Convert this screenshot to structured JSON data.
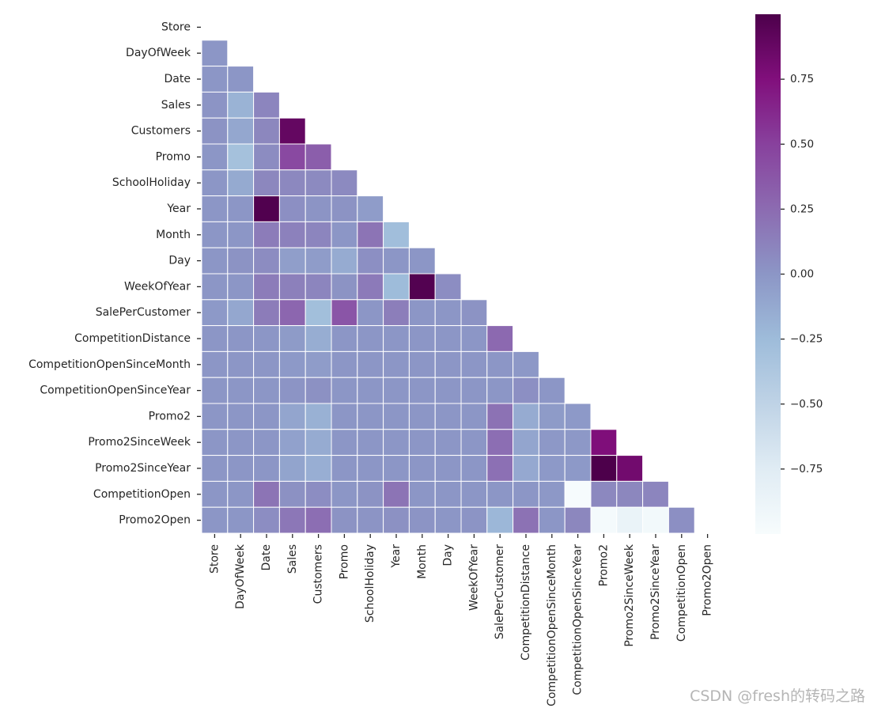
{
  "chart_data": {
    "type": "heatmap",
    "title": "",
    "xlabel": "",
    "ylabel": "",
    "mask": "upper-triangle",
    "colormap": "BuPu",
    "colorbar": {
      "vmin": -1.0,
      "vmax": 1.0,
      "ticks": [
        0.75,
        0.5,
        0.25,
        0.0,
        -0.25,
        -0.5,
        -0.75
      ],
      "tick_labels": [
        "0.75",
        "0.50",
        "0.25",
        "0.00",
        "−0.25",
        "−0.50",
        "−0.75"
      ]
    },
    "labels": [
      "Store",
      "DayOfWeek",
      "Date",
      "Sales",
      "Customers",
      "Promo",
      "SchoolHoliday",
      "Year",
      "Month",
      "Day",
      "WeekOfYear",
      "SalePerCustomer",
      "CompetitionDistance",
      "CompetitionOpenSinceMonth",
      "CompetitionOpenSinceYear",
      "Promo2",
      "Promo2SinceWeek",
      "Promo2SinceYear",
      "CompetitionOpen",
      "Promo2Open"
    ],
    "values": [
      [],
      [
        0.0
      ],
      [
        0.0,
        0.0
      ],
      [
        0.01,
        -0.19,
        0.1
      ],
      [
        0.02,
        -0.11,
        0.09,
        0.89
      ],
      [
        0.0,
        -0.3,
        0.06,
        0.45,
        0.33
      ],
      [
        0.0,
        -0.13,
        0.09,
        0.08,
        0.07,
        0.07
      ],
      [
        0.0,
        0.0,
        0.98,
        0.04,
        0.01,
        0.02,
        -0.04
      ],
      [
        0.0,
        0.0,
        0.15,
        0.12,
        0.1,
        0.0,
        0.2,
        -0.27
      ],
      [
        0.0,
        0.02,
        0.06,
        -0.05,
        -0.04,
        -0.14,
        0.04,
        0.0,
        0.0
      ],
      [
        0.0,
        0.0,
        0.15,
        0.13,
        0.1,
        0.02,
        0.16,
        -0.25,
        0.97,
        0.05
      ],
      [
        -0.02,
        -0.11,
        0.15,
        0.28,
        -0.28,
        0.38,
        0.0,
        0.14,
        0.0,
        0.0,
        0.02
      ],
      [
        0.0,
        0.0,
        0.0,
        -0.03,
        -0.15,
        0.0,
        0.0,
        0.0,
        0.0,
        0.0,
        0.0,
        0.26
      ],
      [
        0.0,
        0.0,
        0.0,
        -0.02,
        -0.04,
        0.0,
        0.0,
        0.0,
        0.0,
        0.0,
        0.0,
        0.0,
        -0.01
      ],
      [
        0.0,
        0.0,
        0.0,
        0.01,
        0.03,
        0.0,
        0.0,
        0.0,
        0.0,
        0.0,
        0.0,
        0.0,
        0.04,
        0.0
      ],
      [
        0.0,
        0.0,
        0.0,
        -0.1,
        -0.18,
        0.0,
        0.0,
        0.0,
        0.0,
        0.0,
        0.0,
        0.21,
        -0.14,
        -0.03,
        -0.02
      ],
      [
        0.0,
        0.0,
        0.0,
        -0.07,
        -0.14,
        0.0,
        0.0,
        0.0,
        0.0,
        0.0,
        0.0,
        0.23,
        -0.1,
        -0.01,
        -0.01,
        0.76
      ],
      [
        0.0,
        0.0,
        0.0,
        -0.09,
        -0.16,
        0.0,
        0.0,
        0.0,
        0.0,
        0.0,
        0.0,
        0.22,
        -0.12,
        -0.02,
        -0.02,
        1.0,
        0.82
      ],
      [
        0.0,
        0.0,
        0.2,
        0.03,
        0.05,
        0.0,
        0.02,
        0.2,
        0.0,
        0.0,
        0.0,
        0.0,
        0.0,
        -0.01,
        -0.99,
        0.08,
        0.09,
        0.1
      ],
      [
        0.0,
        0.0,
        0.05,
        0.18,
        0.23,
        0.02,
        0.01,
        0.03,
        0.01,
        0.0,
        0.01,
        -0.22,
        0.21,
        0.0,
        0.09,
        -0.97,
        -0.86,
        -0.95,
        0.04
      ]
    ]
  },
  "watermark": "CSDN @fresh的转码之路"
}
